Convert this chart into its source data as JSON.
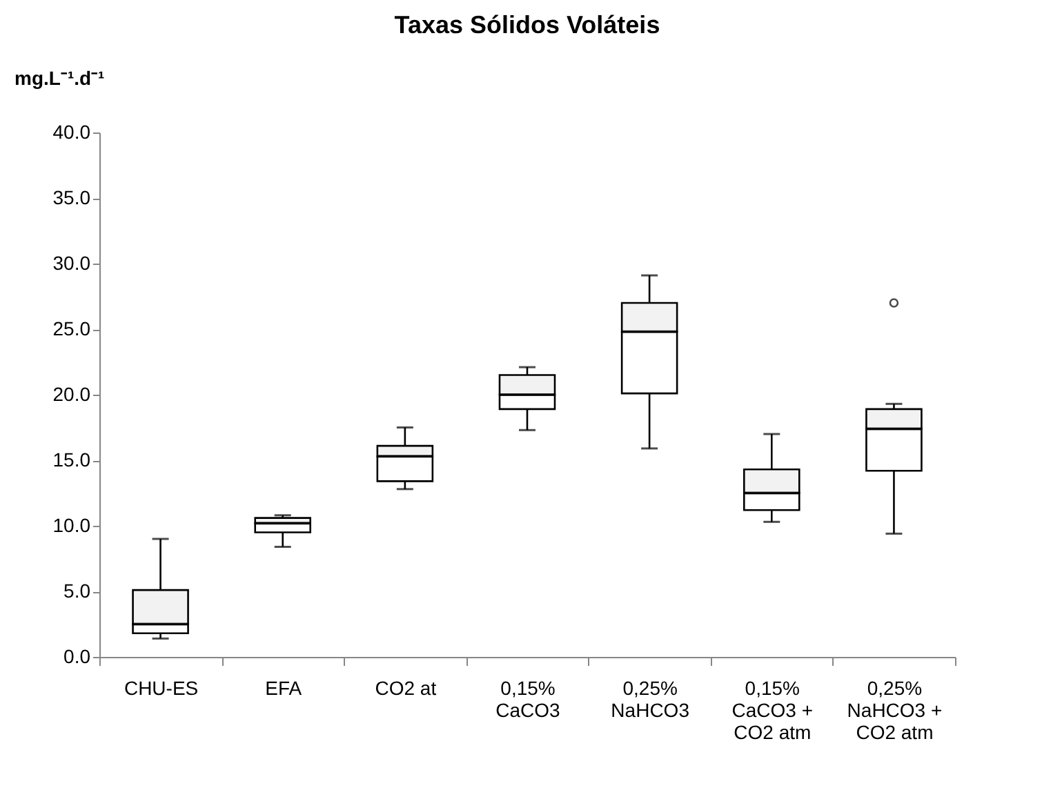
{
  "chart_data": {
    "type": "box",
    "title": "Taxas Sólidos Voláteis",
    "ylabel": "mg.L⁻¹.d⁻¹",
    "categories": [
      "CHU-ES",
      "EFA",
      "CO2 at",
      "0,15%\nCaCO3",
      "0,25%\nNaHCO3",
      "0,15%\nCaCO3 +\nCO2 atm",
      "0,25%\nNaHCO3 +\nCO2 atm"
    ],
    "boxes": [
      {
        "low": 1.4,
        "q1": 1.8,
        "median": 2.5,
        "q3": 5.1,
        "high": 9.0
      },
      {
        "low": 8.4,
        "q1": 9.5,
        "median": 10.2,
        "q3": 10.6,
        "high": 10.8
      },
      {
        "low": 12.8,
        "q1": 13.4,
        "median": 15.3,
        "q3": 16.1,
        "high": 17.5
      },
      {
        "low": 17.3,
        "q1": 18.9,
        "median": 20.0,
        "q3": 21.5,
        "high": 22.1
      },
      {
        "low": 15.9,
        "q1": 20.1,
        "median": 24.8,
        "q3": 27.0,
        "high": 29.1
      },
      {
        "low": 10.3,
        "q1": 11.2,
        "median": 12.5,
        "q3": 14.3,
        "high": 17.0
      },
      {
        "low": 9.4,
        "q1": 14.2,
        "median": 17.4,
        "q3": 18.9,
        "high": 19.3,
        "outliers": [
          27.0
        ]
      }
    ],
    "colors": [
      "#f2f2f2",
      "#f2f2f2",
      "#f2f2f2",
      "#f2f2f2",
      "#f2f2f2",
      "#f2f2f2",
      "#f2f2f2"
    ],
    "ylim": [
      0,
      40
    ],
    "yticks": [
      {
        "value": 0,
        "label": "0.0"
      },
      {
        "value": 5,
        "label": "5.0"
      },
      {
        "value": 10,
        "label": "10.0"
      },
      {
        "value": 15,
        "label": "15.0"
      },
      {
        "value": 20,
        "label": "20.0"
      },
      {
        "value": 25,
        "label": "25.0"
      },
      {
        "value": 30,
        "label": "30.0"
      },
      {
        "value": 35,
        "label": "35.0"
      },
      {
        "value": 40,
        "label": "40.0"
      }
    ],
    "grid": false
  }
}
